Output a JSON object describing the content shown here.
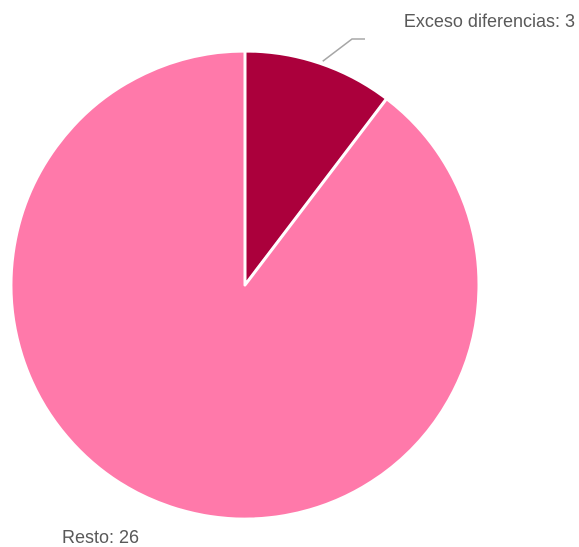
{
  "chart_data": {
    "type": "pie",
    "title": "",
    "categories": [
      "Exceso diferencias",
      "Resto"
    ],
    "values": [
      3,
      26
    ],
    "labels": [
      "Exceso diferencias:  3",
      "Resto:  26"
    ],
    "colors": [
      "#ab003c",
      "#ff79aa"
    ],
    "slice_border_color": "#ffffff",
    "leader_line_color": "#a6a6a6",
    "label_color": "#595959",
    "legend": "none"
  }
}
